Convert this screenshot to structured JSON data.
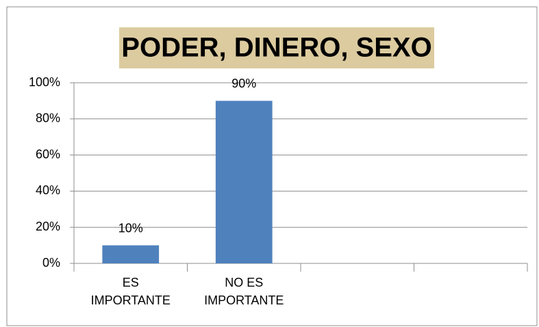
{
  "chart_data": {
    "type": "bar",
    "title": "PODER, DINERO, SEXO",
    "categories": [
      "ES\nIMPORTANTE",
      "NO ES\nIMPORTANTE",
      null,
      null
    ],
    "values": [
      10,
      90,
      null,
      null
    ],
    "value_labels": [
      "10%",
      "90%",
      null,
      null
    ],
    "color": "#4f81bd",
    "ylim": [
      0,
      100
    ],
    "yticks": [
      {
        "value": 0,
        "label": "0%"
      },
      {
        "value": 20,
        "label": "20%"
      },
      {
        "value": 40,
        "label": "40%"
      },
      {
        "value": 60,
        "label": "60%"
      },
      {
        "value": 80,
        "label": "80%"
      },
      {
        "value": 100,
        "label": "100%"
      }
    ],
    "grid": true
  }
}
